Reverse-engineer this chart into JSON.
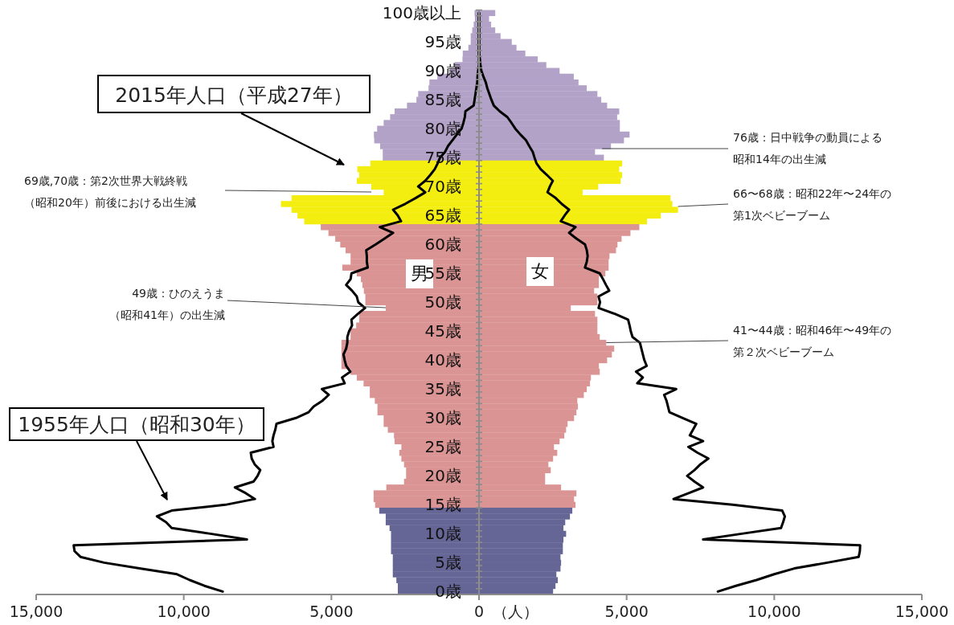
{
  "chart_data": {
    "type": "bar",
    "orientation": "horizontal",
    "stacked": true,
    "categories": [
      "100歳以上",
      null,
      null,
      null,
      null,
      "95歳",
      null,
      null,
      null,
      null,
      "90歳",
      null,
      null,
      null,
      null,
      "85歳",
      null,
      null,
      null,
      null,
      "80歳",
      null,
      null,
      null,
      null,
      "75歳",
      null,
      null,
      null,
      null,
      "70歳",
      null,
      null,
      null,
      null,
      "65歳",
      null,
      null,
      null,
      null,
      "60歳",
      null,
      null,
      null,
      null,
      "55歳",
      null,
      null,
      null,
      null,
      "50歳",
      null,
      null,
      null,
      null,
      "45歳",
      null,
      null,
      null,
      null,
      "40歳",
      null,
      null,
      null,
      null,
      "35歳",
      null,
      null,
      null,
      null,
      "30歳",
      null,
      null,
      null,
      null,
      "25歳",
      null,
      null,
      null,
      null,
      "20歳",
      null,
      null,
      null,
      null,
      "15歳",
      null,
      null,
      null,
      null,
      "10歳",
      null,
      null,
      null,
      null,
      "5歳",
      null,
      null,
      null,
      null,
      "0歳"
    ],
    "xlabel": "（人）",
    "xlim": [
      -15000,
      15000
    ],
    "xticks": [
      {
        "value": -15000,
        "label": "15,000"
      },
      {
        "value": -10000,
        "label": "10,000"
      },
      {
        "value": -5000,
        "label": "5,000"
      },
      0,
      {
        "value": 5000,
        "label": "5,000"
      },
      {
        "value": 10000,
        "label": "10,000"
      },
      {
        "value": 15000,
        "label": "15,000"
      }
    ],
    "series": [
      {
        "name": "男",
        "values": [
          -150,
          -140,
          -180,
          -230,
          -280,
          -280,
          -360,
          -550,
          -560,
          -820,
          -1000,
          -1410,
          -1680,
          -1710,
          -2060,
          -2120,
          -2440,
          -2860,
          -3010,
          -3230,
          -3450,
          -3560,
          -3550,
          -3350,
          -3260,
          -3260,
          -3680,
          -4120,
          -4060,
          -4140,
          -3650,
          -3230,
          -6350,
          -6710,
          -6350,
          -6150,
          -5920,
          -5360,
          -5100,
          -4870,
          -4700,
          -4520,
          -4350,
          -4350,
          -4630,
          -4140,
          -4000,
          -3950,
          -3900,
          -3850,
          -3850,
          -3160,
          -4060,
          -4060,
          -4160,
          -4350,
          -4350,
          -4660,
          -4660,
          -4660,
          -4660,
          -4660,
          -4350,
          -4140,
          -3910,
          -3700,
          -3700,
          -3530,
          -3440,
          -3440,
          -3230,
          -3230,
          -3090,
          -2880,
          -2860,
          -2630,
          -2700,
          -2630,
          -2540,
          -2470,
          -2470,
          -2540,
          -3140,
          -3570,
          -3570,
          -3520,
          -3380,
          -3160,
          -3160,
          -3030,
          -2980,
          -2980,
          -2980,
          -2980,
          -2920,
          -2920,
          -2920,
          -2920,
          -2800,
          -2750,
          -2750
        ],
        "colors": [
          "#b3a2c8",
          "#b3a2c8",
          "#b3a2c8",
          "#b3a2c8",
          "#b3a2c8",
          "#b3a2c8",
          "#b3a2c8",
          "#b3a2c8",
          "#b3a2c8",
          "#b3a2c8",
          "#b3a2c8",
          "#b3a2c8",
          "#b3a2c8",
          "#b3a2c8",
          "#b3a2c8",
          "#b3a2c8",
          "#b3a2c8",
          "#b3a2c8",
          "#b3a2c8",
          "#b3a2c8",
          "#b3a2c8",
          "#b3a2c8",
          "#b3a2c8",
          "#b3a2c8",
          "#b3a2c8",
          "#b3a2c8",
          "#f4ee10",
          "#f4ee10",
          "#f4ee10",
          "#f4ee10",
          "#f4ee10",
          "#f4ee10",
          "#f4ee10",
          "#f4ee10",
          "#f4ee10",
          "#f4ee10",
          "#f4ee10",
          "#db9494",
          "#db9494",
          "#db9494",
          "#db9494",
          "#db9494",
          "#db9494",
          "#db9494",
          "#db9494",
          "#db9494",
          "#db9494",
          "#db9494",
          "#db9494",
          "#db9494",
          "#db9494",
          "#db9494",
          "#db9494",
          "#db9494",
          "#db9494",
          "#db9494",
          "#db9494",
          "#db9494",
          "#db9494",
          "#db9494",
          "#db9494",
          "#db9494",
          "#db9494",
          "#db9494",
          "#db9494",
          "#db9494",
          "#db9494",
          "#db9494",
          "#db9494",
          "#db9494",
          "#db9494",
          "#db9494",
          "#db9494",
          "#db9494",
          "#db9494",
          "#db9494",
          "#db9494",
          "#db9494",
          "#db9494",
          "#db9494",
          "#db9494",
          "#db9494",
          "#db9494",
          "#db9494",
          "#db9494",
          "#db9494",
          "#656596",
          "#656596",
          "#656596",
          "#656596",
          "#656596",
          "#656596",
          "#656596",
          "#656596",
          "#656596",
          "#656596",
          "#656596",
          "#656596",
          "#656596",
          "#656596",
          "#656596"
        ]
      },
      {
        "name": "女",
        "values": [
          550,
          340,
          410,
          550,
          730,
          1110,
          1270,
          1570,
          1990,
          2280,
          2730,
          3210,
          3370,
          3650,
          4010,
          4140,
          4340,
          4750,
          4680,
          4770,
          4770,
          5100,
          4910,
          4470,
          3930,
          4230,
          4850,
          4750,
          4850,
          4800,
          4040,
          3510,
          6490,
          6550,
          6740,
          6160,
          5690,
          5430,
          5130,
          4830,
          4690,
          4640,
          4420,
          4390,
          4390,
          4280,
          4060,
          4060,
          3900,
          4010,
          4010,
          3110,
          3930,
          4010,
          4010,
          4010,
          4090,
          4310,
          4580,
          4500,
          4340,
          4060,
          4090,
          3790,
          3760,
          3650,
          3550,
          3330,
          3350,
          3300,
          3220,
          3000,
          2950,
          2890,
          2730,
          2540,
          2650,
          2510,
          2350,
          2430,
          2240,
          2240,
          2780,
          3300,
          3220,
          3270,
          3160,
          3080,
          2920,
          2860,
          2950,
          2860,
          2840,
          2840,
          2760,
          2780,
          2760,
          2620,
          2670,
          2590,
          2510
        ],
        "colors": [
          "#b3a2c8",
          "#b3a2c8",
          "#b3a2c8",
          "#b3a2c8",
          "#b3a2c8",
          "#b3a2c8",
          "#b3a2c8",
          "#b3a2c8",
          "#b3a2c8",
          "#b3a2c8",
          "#b3a2c8",
          "#b3a2c8",
          "#b3a2c8",
          "#b3a2c8",
          "#b3a2c8",
          "#b3a2c8",
          "#b3a2c8",
          "#b3a2c8",
          "#b3a2c8",
          "#b3a2c8",
          "#b3a2c8",
          "#b3a2c8",
          "#b3a2c8",
          "#b3a2c8",
          "#b3a2c8",
          "#b3a2c8",
          "#f4ee10",
          "#f4ee10",
          "#f4ee10",
          "#f4ee10",
          "#f4ee10",
          "#f4ee10",
          "#f4ee10",
          "#f4ee10",
          "#f4ee10",
          "#f4ee10",
          "#f4ee10",
          "#db9494",
          "#db9494",
          "#db9494",
          "#db9494",
          "#db9494",
          "#db9494",
          "#db9494",
          "#db9494",
          "#db9494",
          "#db9494",
          "#db9494",
          "#db9494",
          "#db9494",
          "#db9494",
          "#db9494",
          "#db9494",
          "#db9494",
          "#db9494",
          "#db9494",
          "#db9494",
          "#db9494",
          "#db9494",
          "#db9494",
          "#db9494",
          "#db9494",
          "#db9494",
          "#db9494",
          "#db9494",
          "#db9494",
          "#db9494",
          "#db9494",
          "#db9494",
          "#db9494",
          "#db9494",
          "#db9494",
          "#db9494",
          "#db9494",
          "#db9494",
          "#db9494",
          "#db9494",
          "#db9494",
          "#db9494",
          "#db9494",
          "#db9494",
          "#db9494",
          "#db9494",
          "#db9494",
          "#db9494",
          "#db9494",
          "#656596",
          "#656596",
          "#656596",
          "#656596",
          "#656596",
          "#656596",
          "#656596",
          "#656596",
          "#656596",
          "#656596",
          "#656596",
          "#656596",
          "#656596",
          "#656596",
          "#656596"
        ]
      },
      {
        "type": "line",
        "color": "#000000",
        "values": [
          0,
          0,
          0,
          0,
          0,
          0,
          0,
          0,
          0,
          0,
          -30,
          -50,
          -60,
          -90,
          -120,
          -150,
          -180,
          -460,
          -480,
          -530,
          -590,
          -750,
          -900,
          -1050,
          -1150,
          -1320,
          -1400,
          -1500,
          -1650,
          -1820,
          -2060,
          -1820,
          -2150,
          -2500,
          -2910,
          -2750,
          -2640,
          -3360,
          -2910,
          -3200,
          -3500,
          -3820,
          -3800,
          -3800,
          -3770,
          -4320,
          -4350,
          -4500,
          -4300,
          -4140,
          -4090,
          -3860,
          -4100,
          -4320,
          -4300,
          -4400,
          -4460,
          -4460,
          -4500,
          -4590,
          -4550,
          -4500,
          -4360,
          -4640,
          -4550,
          -5320,
          -5090,
          -5300,
          -5600,
          -5770,
          -6200,
          -6860,
          -6900,
          -6960,
          -7000,
          -6960,
          -7730,
          -7700,
          -7600,
          -7410,
          -7500,
          -7640,
          -8270,
          -7900,
          -7590,
          -8590,
          -10410,
          -10910,
          -10600,
          -10410,
          -9100,
          -7860,
          -13730,
          -13700,
          -13500,
          -12700,
          -11500,
          -10230,
          -9800,
          -9300,
          -8680
        ]
      },
      {
        "type": "line",
        "color": "#000000",
        "values": [
          0,
          0,
          0,
          0,
          0,
          0,
          0,
          0,
          30,
          50,
          80,
          150,
          230,
          280,
          350,
          420,
          500,
          700,
          960,
          1100,
          1230,
          1400,
          1590,
          1700,
          1820,
          1880,
          1950,
          2090,
          2300,
          2500,
          2400,
          2320,
          2600,
          2800,
          3050,
          2900,
          2770,
          3270,
          3050,
          3300,
          3590,
          3650,
          3680,
          3650,
          3590,
          4090,
          4200,
          4300,
          4410,
          4050,
          4100,
          4050,
          4600,
          5050,
          5100,
          5140,
          5200,
          5450,
          5500,
          5550,
          5600,
          5680,
          5320,
          5550,
          5360,
          6680,
          6270,
          6350,
          6400,
          6450,
          6900,
          7360,
          7250,
          7140,
          7590,
          7090,
          7400,
          7770,
          7500,
          7300,
          7050,
          7300,
          7590,
          7100,
          6590,
          8590,
          10270,
          10360,
          10300,
          10230,
          8900,
          7590,
          12910,
          12900,
          12860,
          11800,
          10680,
          10000,
          9400,
          8700,
          8090
        ]
      }
    ],
    "annotations": [
      "2015年人口（平成27年）",
      "1955年人口（昭和30年）",
      "69歳,70歳：第2次世界大戦終戦（昭和20年）前後における出生減",
      {
        "text": "49歳：ひのえうま（昭和41年）の出生減",
        "x": -3160
      },
      {
        "text": "76歳：日中戦争の動員による昭和14年の出生減",
        "x": 4170
      },
      {
        "text": "66〜68歳：昭和22年〜24年の第1次ベビーブーム",
        "x": 6740
      },
      {
        "text": "41〜44歳：昭和46年〜49年の第２次ベビーブーム",
        "x": 4310
      }
    ]
  }
}
